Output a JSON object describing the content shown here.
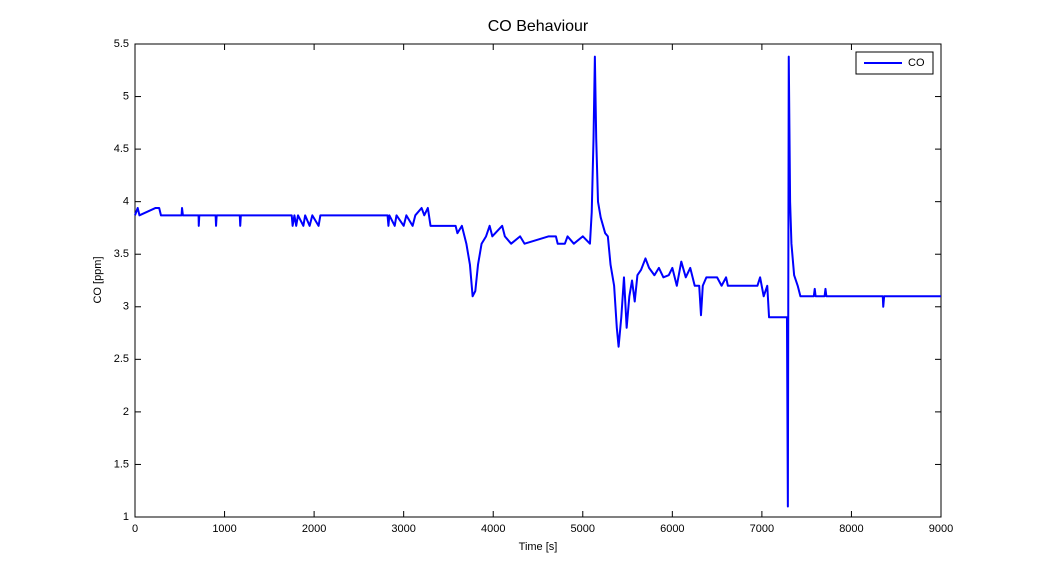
{
  "chart_data": {
    "type": "line",
    "title": "CO Behaviour",
    "x_label": "Time [s]",
    "y_label": "CO [ppm]",
    "xlim": [
      0,
      9000
    ],
    "xticks": [
      0,
      1000,
      2000,
      3000,
      4000,
      5000,
      6000,
      7000,
      8000,
      9000
    ],
    "ylim": [
      1,
      5.5
    ],
    "yticks": [
      1,
      1.5,
      2,
      2.5,
      3,
      3.5,
      4,
      4.5,
      5,
      5.5
    ],
    "grid": false,
    "legend": "top-right",
    "x": [
      0,
      30,
      50,
      230,
      270,
      290,
      520,
      525,
      535,
      710,
      712,
      718,
      900,
      905,
      912,
      1170,
      1175,
      1182,
      1750,
      1760,
      1780,
      1800,
      1820,
      1880,
      1900,
      1950,
      1980,
      2050,
      2070,
      2820,
      2830,
      2840,
      2900,
      2920,
      3000,
      3030,
      3100,
      3130,
      3200,
      3230,
      3270,
      3300,
      3580,
      3600,
      3650,
      3700,
      3740,
      3770,
      3800,
      3830,
      3870,
      3920,
      3960,
      3990,
      4100,
      4130,
      4200,
      4300,
      4350,
      4620,
      4700,
      4720,
      4800,
      4830,
      4900,
      5000,
      5080,
      5100,
      5120,
      5135,
      5150,
      5170,
      5200,
      5250,
      5280,
      5310,
      5350,
      5380,
      5400,
      5430,
      5460,
      5490,
      5520,
      5550,
      5580,
      5610,
      5650,
      5700,
      5740,
      5800,
      5850,
      5900,
      5960,
      6000,
      6050,
      6100,
      6150,
      6200,
      6250,
      6300,
      6320,
      6340,
      6380,
      6500,
      6550,
      6600,
      6620,
      6950,
      6980,
      7020,
      7060,
      7080,
      7280,
      7290,
      7300,
      7315,
      7330,
      7360,
      7400,
      7430,
      7580,
      7590,
      7600,
      7700,
      7710,
      7720,
      8350,
      8355,
      8365,
      9000
    ],
    "series": [
      {
        "name": "CO",
        "color": "#0000ff",
        "values": [
          3.87,
          3.94,
          3.87,
          3.94,
          3.94,
          3.87,
          3.87,
          3.94,
          3.87,
          3.87,
          3.77,
          3.87,
          3.87,
          3.77,
          3.87,
          3.87,
          3.77,
          3.87,
          3.87,
          3.77,
          3.87,
          3.77,
          3.87,
          3.77,
          3.87,
          3.77,
          3.87,
          3.77,
          3.87,
          3.87,
          3.77,
          3.87,
          3.77,
          3.87,
          3.77,
          3.87,
          3.77,
          3.87,
          3.94,
          3.87,
          3.94,
          3.77,
          3.77,
          3.7,
          3.77,
          3.6,
          3.4,
          3.1,
          3.15,
          3.4,
          3.6,
          3.67,
          3.77,
          3.67,
          3.77,
          3.67,
          3.6,
          3.67,
          3.6,
          3.67,
          3.67,
          3.6,
          3.6,
          3.67,
          3.6,
          3.67,
          3.6,
          3.9,
          4.6,
          5.38,
          4.6,
          4.0,
          3.85,
          3.7,
          3.67,
          3.4,
          3.2,
          2.8,
          2.62,
          2.9,
          3.28,
          2.8,
          3.1,
          3.25,
          3.05,
          3.3,
          3.35,
          3.46,
          3.37,
          3.3,
          3.37,
          3.28,
          3.3,
          3.37,
          3.2,
          3.43,
          3.28,
          3.37,
          3.2,
          3.2,
          2.92,
          3.2,
          3.28,
          3.28,
          3.2,
          3.28,
          3.2,
          3.2,
          3.28,
          3.1,
          3.2,
          2.9,
          2.9,
          1.1,
          5.38,
          4.0,
          3.6,
          3.3,
          3.2,
          3.1,
          3.1,
          3.17,
          3.1,
          3.1,
          3.17,
          3.1,
          3.1,
          3.0,
          3.1,
          3.1
        ]
      }
    ]
  }
}
